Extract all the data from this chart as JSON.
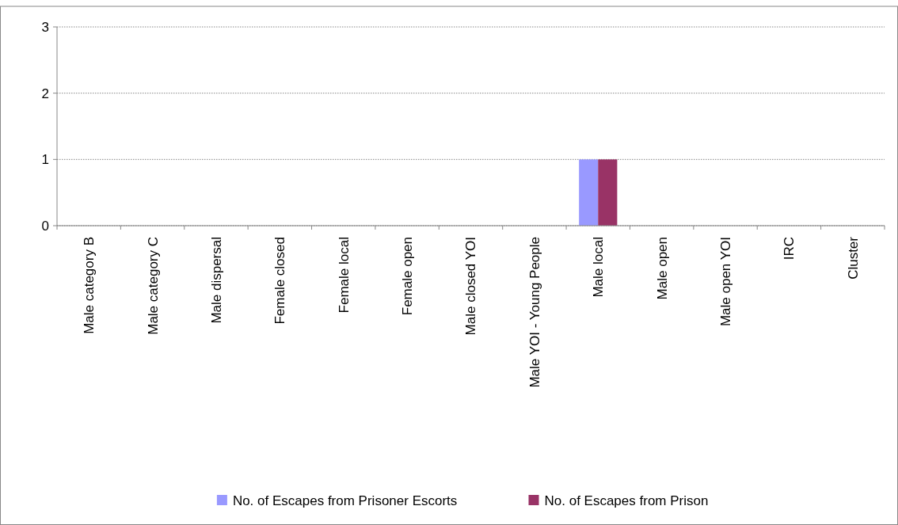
{
  "chart_data": {
    "type": "bar",
    "categories": [
      "Male category B",
      "Male category C",
      "Male dispersal",
      "Female closed",
      "Female local",
      "Female open",
      "Male closed YOI",
      "Male YOI - Young People",
      "Male local",
      "Male open",
      "Male open YOI",
      "IRC",
      "Cluster"
    ],
    "series": [
      {
        "name": "No. of Escapes from Prisoner Escorts",
        "color": "#9999ff",
        "values": [
          0,
          0,
          0,
          0,
          0,
          0,
          0,
          0,
          1,
          0,
          0,
          0,
          0
        ]
      },
      {
        "name": "No. of Escapes from Prison",
        "color": "#993366",
        "values": [
          0,
          0,
          0,
          0,
          0,
          0,
          0,
          0,
          1,
          0,
          0,
          0,
          0
        ]
      }
    ],
    "ylim": [
      0,
      3
    ],
    "yticks": [
      0,
      1,
      2,
      3
    ],
    "grid": "y",
    "legend": "bottom"
  }
}
